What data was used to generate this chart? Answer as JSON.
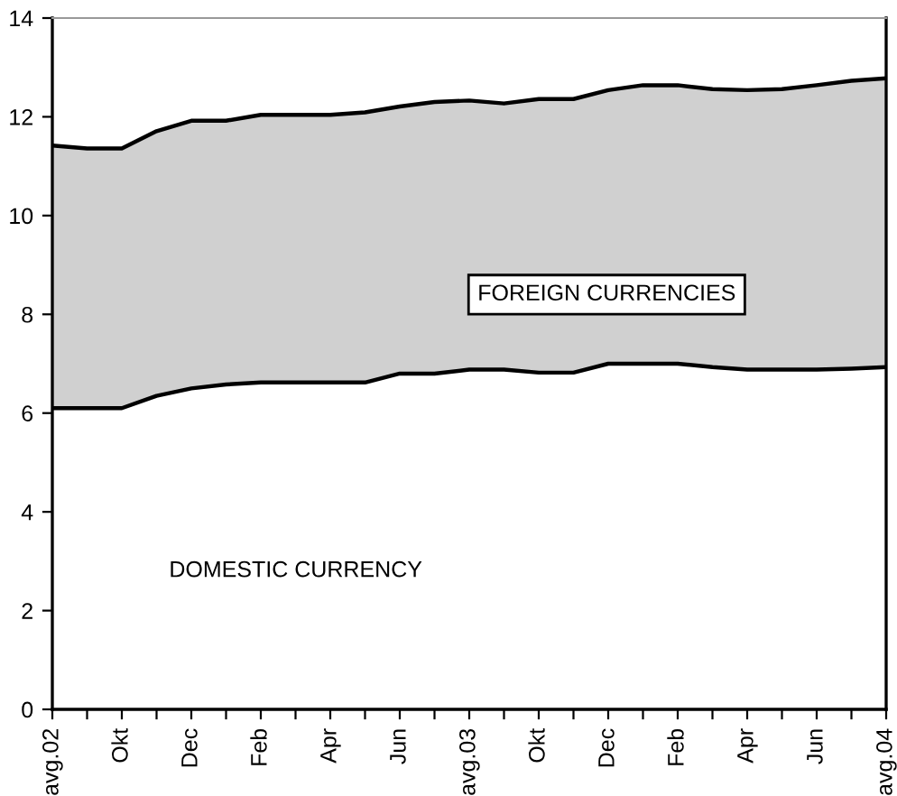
{
  "chart_data": {
    "type": "area",
    "stacked": true,
    "categories": [
      "avg.02",
      null,
      "Okt",
      null,
      "Dec",
      null,
      "Feb",
      null,
      "Apr",
      null,
      "Jun",
      null,
      "avg.03",
      null,
      "Okt",
      null,
      "Dec",
      null,
      "Feb",
      null,
      "Apr",
      null,
      "Jun",
      null,
      "avg.04"
    ],
    "series": [
      {
        "name": "DOMESTIC CURRENCY",
        "color": "#ffffff",
        "values": [
          6.1,
          6.1,
          6.1,
          6.35,
          6.5,
          6.58,
          6.62,
          6.62,
          6.62,
          6.62,
          6.8,
          6.8,
          6.88,
          6.88,
          6.82,
          6.82,
          7.0,
          7.0,
          7.0,
          6.93,
          6.88,
          6.88,
          6.88,
          6.9,
          6.93
        ]
      },
      {
        "name": "FOREIGN CURRENCIES",
        "color": "#d0d0d0",
        "values": [
          5.32,
          5.26,
          5.26,
          5.36,
          5.42,
          5.34,
          5.42,
          5.42,
          5.42,
          5.47,
          5.41,
          5.5,
          5.45,
          5.39,
          5.54,
          5.54,
          5.54,
          5.64,
          5.64,
          5.63,
          5.66,
          5.68,
          5.76,
          5.83,
          5.85
        ]
      }
    ],
    "ylim": [
      0,
      14
    ],
    "yticks": [
      0,
      2,
      4,
      6,
      8,
      10,
      12,
      14
    ],
    "grid": false,
    "legend": false
  }
}
